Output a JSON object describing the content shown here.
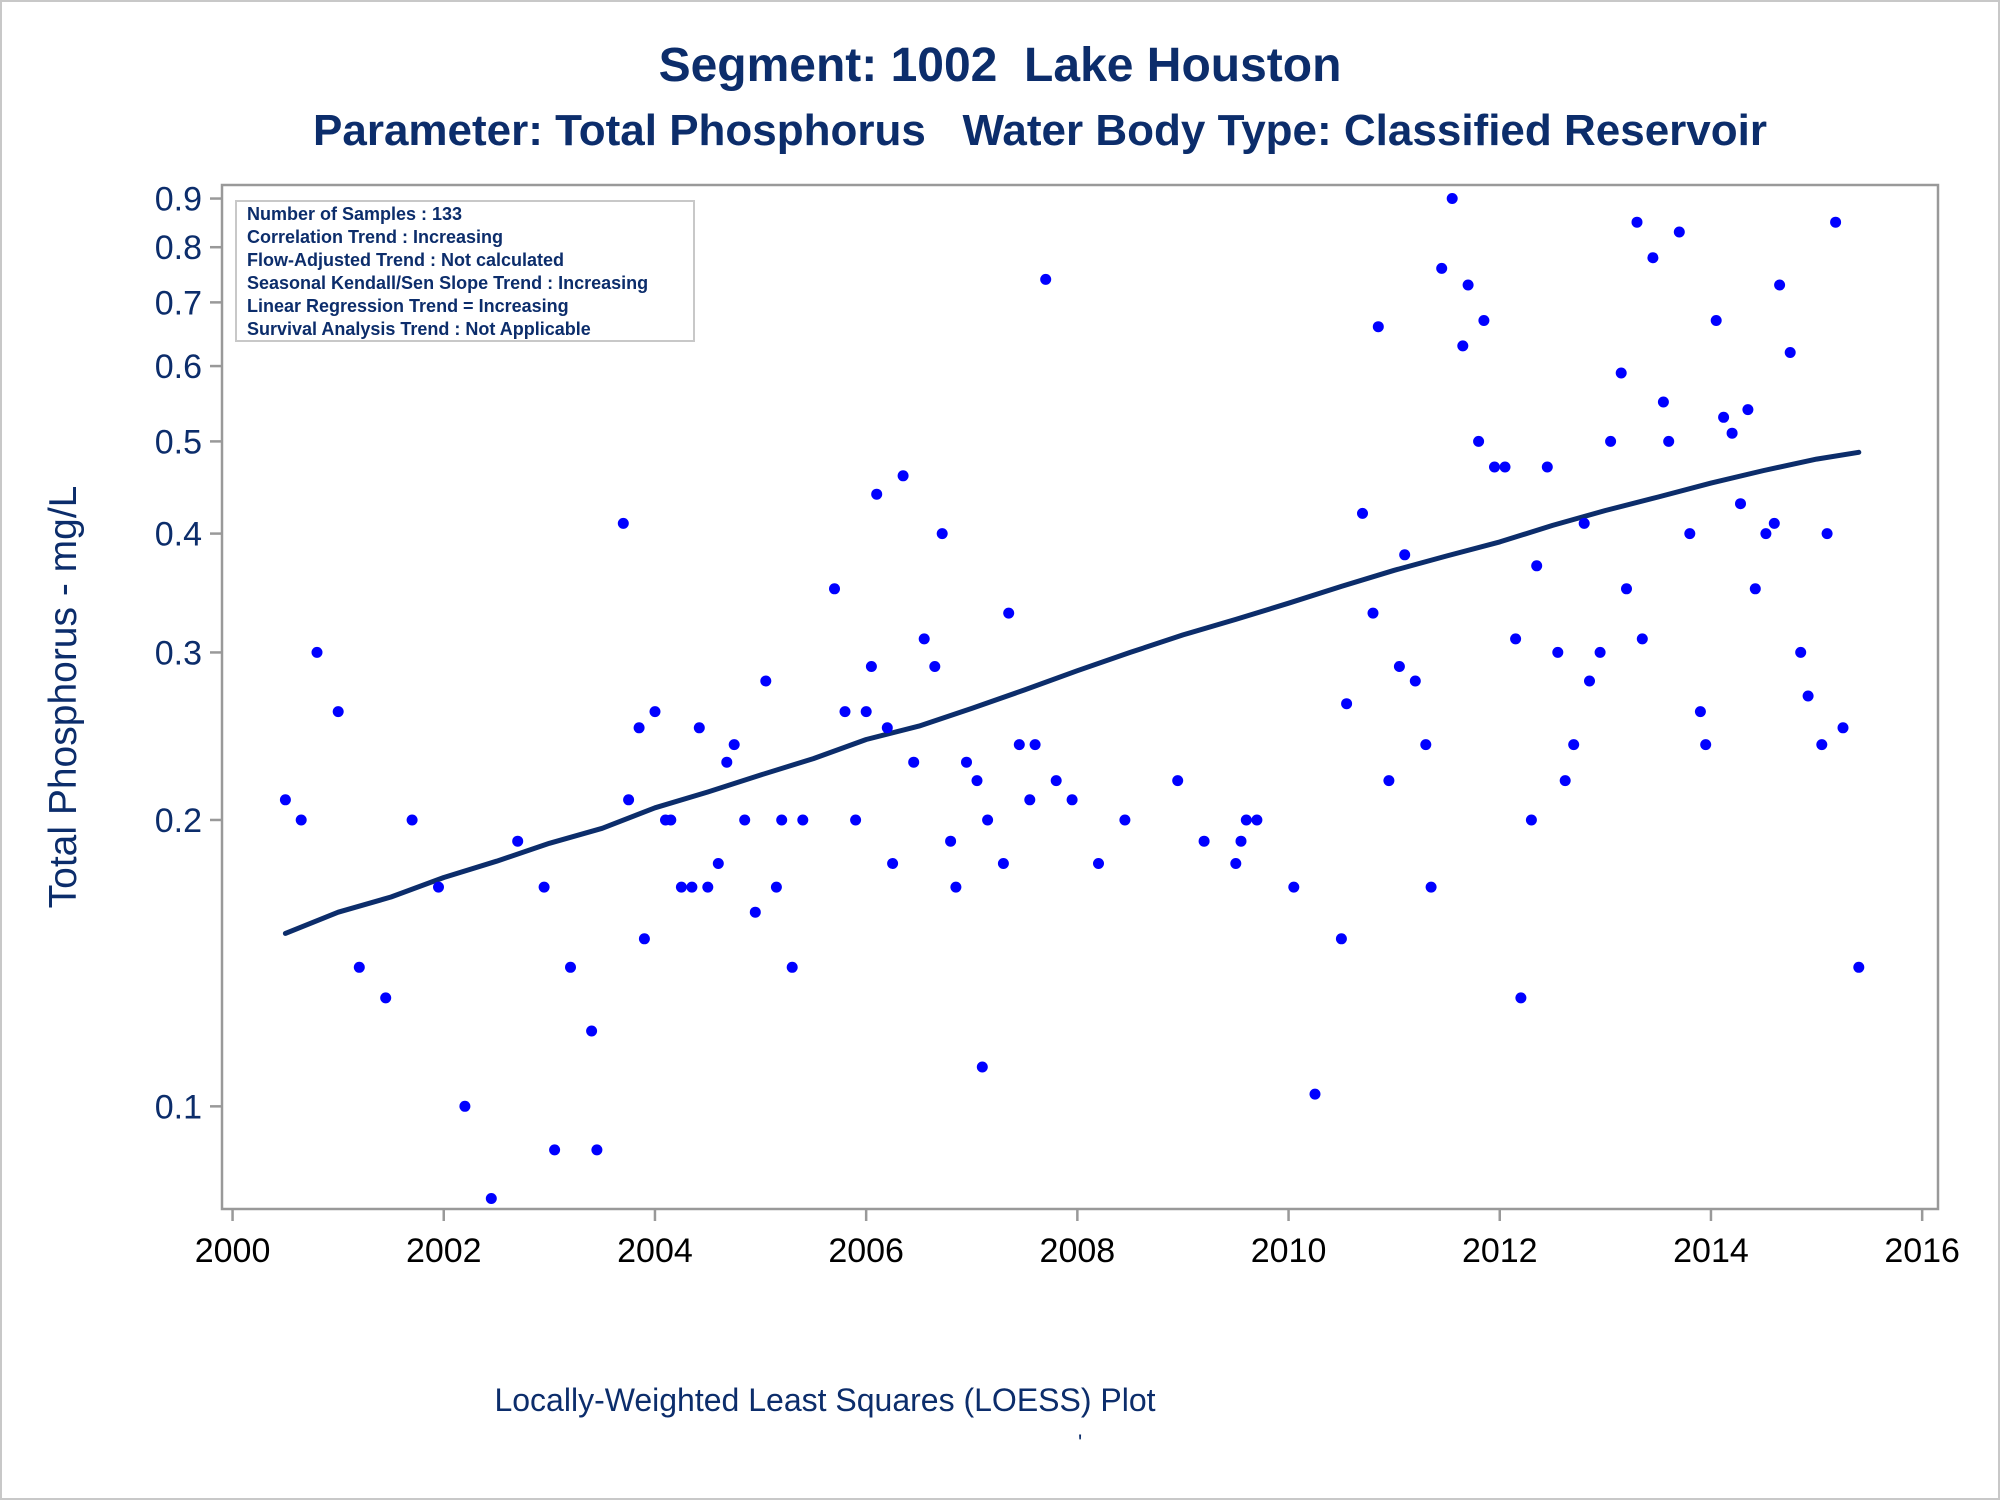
{
  "page": {
    "title_line1": "Segment: 1002  Lake Houston",
    "title_line2": "Parameter: Total Phosphorus   Water Body Type: Classified Reservoir",
    "footer": "Locally-Weighted Least Squares (LOESS) Plot",
    "footer_mark": "'"
  },
  "stats_box": [
    "Number of Samples : 133",
    "Correlation Trend : Increasing",
    "Flow-Adjusted Trend : Not calculated",
    "Seasonal Kendall/Sen Slope Trend : Increasing",
    "Linear Regression Trend = Increasing",
    "Survival Analysis Trend : Not Applicable"
  ],
  "colors": {
    "title": "#0c2d6b",
    "points": "#0000ff",
    "trend_line": "#0c2d6b",
    "axis": "#999999"
  },
  "chart_data": {
    "type": "scatter",
    "title": "Segment: 1002  Lake Houston",
    "subtitle": "Parameter: Total Phosphorus   Water Body Type: Classified Reservoir",
    "xlabel": "",
    "ylabel": "Total Phosphorus - mg/L",
    "y_scale": "log",
    "xlim": [
      1999.9,
      2016.15
    ],
    "ylim": [
      0.078,
      0.93
    ],
    "x_ticks": [
      "2000",
      "2002",
      "2004",
      "2006",
      "2008",
      "2010",
      "2012",
      "2014",
      "2016"
    ],
    "y_ticks": [
      "0.1",
      "0.2",
      "0.3",
      "0.4",
      "0.5",
      "0.6",
      "0.7",
      "0.8",
      "0.9"
    ],
    "x_tick_values": [
      2000,
      2002,
      2004,
      2006,
      2008,
      2010,
      2012,
      2014,
      2016
    ],
    "y_tick_values": [
      0.1,
      0.2,
      0.3,
      0.4,
      0.5,
      0.6,
      0.7,
      0.8,
      0.9
    ],
    "grid": false,
    "points": [
      [
        2000.5,
        0.21
      ],
      [
        2000.65,
        0.2
      ],
      [
        2000.8,
        0.3
      ],
      [
        2001.0,
        0.26
      ],
      [
        2001.2,
        0.14
      ],
      [
        2001.45,
        0.13
      ],
      [
        2001.7,
        0.2
      ],
      [
        2001.95,
        0.17
      ],
      [
        2002.2,
        0.1
      ],
      [
        2002.45,
        0.08
      ],
      [
        2002.7,
        0.19
      ],
      [
        2002.95,
        0.17
      ],
      [
        2003.05,
        0.09
      ],
      [
        2003.2,
        0.14
      ],
      [
        2003.4,
        0.12
      ],
      [
        2003.45,
        0.09
      ],
      [
        2003.7,
        0.41
      ],
      [
        2003.75,
        0.21
      ],
      [
        2003.85,
        0.25
      ],
      [
        2003.9,
        0.15
      ],
      [
        2004.0,
        0.26
      ],
      [
        2004.1,
        0.2
      ],
      [
        2004.15,
        0.2
      ],
      [
        2004.25,
        0.17
      ],
      [
        2004.35,
        0.17
      ],
      [
        2004.42,
        0.25
      ],
      [
        2004.5,
        0.17
      ],
      [
        2004.6,
        0.18
      ],
      [
        2004.68,
        0.23
      ],
      [
        2004.75,
        0.24
      ],
      [
        2004.85,
        0.2
      ],
      [
        2004.95,
        0.16
      ],
      [
        2005.05,
        0.28
      ],
      [
        2005.15,
        0.17
      ],
      [
        2005.2,
        0.2
      ],
      [
        2005.3,
        0.14
      ],
      [
        2005.4,
        0.2
      ],
      [
        2005.7,
        0.35
      ],
      [
        2005.8,
        0.26
      ],
      [
        2005.9,
        0.2
      ],
      [
        2006.0,
        0.26
      ],
      [
        2006.05,
        0.29
      ],
      [
        2006.1,
        0.44
      ],
      [
        2006.2,
        0.25
      ],
      [
        2006.25,
        0.18
      ],
      [
        2006.35,
        0.46
      ],
      [
        2006.45,
        0.23
      ],
      [
        2006.55,
        0.31
      ],
      [
        2006.65,
        0.29
      ],
      [
        2006.72,
        0.4
      ],
      [
        2006.8,
        0.19
      ],
      [
        2006.85,
        0.17
      ],
      [
        2006.95,
        0.23
      ],
      [
        2007.05,
        0.22
      ],
      [
        2007.1,
        0.11
      ],
      [
        2007.15,
        0.2
      ],
      [
        2007.3,
        0.18
      ],
      [
        2007.35,
        0.33
      ],
      [
        2007.45,
        0.24
      ],
      [
        2007.55,
        0.21
      ],
      [
        2007.6,
        0.24
      ],
      [
        2007.7,
        0.74
      ],
      [
        2007.8,
        0.22
      ],
      [
        2007.95,
        0.21
      ],
      [
        2008.2,
        0.18
      ],
      [
        2008.45,
        0.2
      ],
      [
        2008.95,
        0.22
      ],
      [
        2009.2,
        0.19
      ],
      [
        2009.5,
        0.18
      ],
      [
        2009.55,
        0.19
      ],
      [
        2009.6,
        0.2
      ],
      [
        2009.7,
        0.2
      ],
      [
        2010.05,
        0.17
      ],
      [
        2010.25,
        0.103
      ],
      [
        2010.5,
        0.15
      ],
      [
        2010.55,
        0.265
      ],
      [
        2010.7,
        0.42
      ],
      [
        2010.8,
        0.33
      ],
      [
        2010.85,
        0.66
      ],
      [
        2010.95,
        0.22
      ],
      [
        2011.05,
        0.29
      ],
      [
        2011.1,
        0.38
      ],
      [
        2011.2,
        0.28
      ],
      [
        2011.3,
        0.24
      ],
      [
        2011.35,
        0.17
      ],
      [
        2011.45,
        0.76
      ],
      [
        2011.55,
        0.9
      ],
      [
        2011.65,
        0.63
      ],
      [
        2011.7,
        0.73
      ],
      [
        2011.8,
        0.5
      ],
      [
        2011.85,
        0.67
      ],
      [
        2011.95,
        0.47
      ],
      [
        2012.05,
        0.47
      ],
      [
        2012.15,
        0.31
      ],
      [
        2012.2,
        0.13
      ],
      [
        2012.3,
        0.2
      ],
      [
        2012.35,
        0.37
      ],
      [
        2012.45,
        0.47
      ],
      [
        2012.55,
        0.3
      ],
      [
        2012.62,
        0.22
      ],
      [
        2012.7,
        0.24
      ],
      [
        2012.8,
        0.41
      ],
      [
        2012.85,
        0.28
      ],
      [
        2012.95,
        0.3
      ],
      [
        2013.05,
        0.5
      ],
      [
        2013.15,
        0.59
      ],
      [
        2013.2,
        0.35
      ],
      [
        2013.3,
        0.85
      ],
      [
        2013.35,
        0.31
      ],
      [
        2013.45,
        0.78
      ],
      [
        2013.55,
        0.55
      ],
      [
        2013.6,
        0.5
      ],
      [
        2013.7,
        0.83
      ],
      [
        2013.8,
        0.4
      ],
      [
        2013.9,
        0.26
      ],
      [
        2013.95,
        0.24
      ],
      [
        2014.05,
        0.67
      ],
      [
        2014.12,
        0.53
      ],
      [
        2014.2,
        0.51
      ],
      [
        2014.28,
        0.43
      ],
      [
        2014.35,
        0.54
      ],
      [
        2014.42,
        0.35
      ],
      [
        2014.52,
        0.4
      ],
      [
        2014.6,
        0.41
      ],
      [
        2014.65,
        0.73
      ],
      [
        2014.75,
        0.62
      ],
      [
        2014.85,
        0.3
      ],
      [
        2014.92,
        0.27
      ],
      [
        2015.05,
        0.24
      ],
      [
        2015.1,
        0.4
      ],
      [
        2015.18,
        0.85
      ],
      [
        2015.25,
        0.25
      ],
      [
        2015.4,
        0.14
      ]
    ],
    "trend_line": [
      [
        2000.5,
        0.152
      ],
      [
        2001.0,
        0.16
      ],
      [
        2001.5,
        0.166
      ],
      [
        2002.0,
        0.174
      ],
      [
        2002.5,
        0.181
      ],
      [
        2003.0,
        0.189
      ],
      [
        2003.5,
        0.196
      ],
      [
        2004.0,
        0.206
      ],
      [
        2004.5,
        0.214
      ],
      [
        2005.0,
        0.223
      ],
      [
        2005.5,
        0.232
      ],
      [
        2006.0,
        0.243
      ],
      [
        2006.5,
        0.251
      ],
      [
        2007.0,
        0.262
      ],
      [
        2007.5,
        0.274
      ],
      [
        2008.0,
        0.287
      ],
      [
        2008.5,
        0.3
      ],
      [
        2009.0,
        0.313
      ],
      [
        2009.5,
        0.325
      ],
      [
        2010.0,
        0.338
      ],
      [
        2010.5,
        0.352
      ],
      [
        2011.0,
        0.366
      ],
      [
        2011.5,
        0.379
      ],
      [
        2012.0,
        0.392
      ],
      [
        2012.5,
        0.408
      ],
      [
        2013.0,
        0.423
      ],
      [
        2013.5,
        0.437
      ],
      [
        2014.0,
        0.452
      ],
      [
        2014.5,
        0.466
      ],
      [
        2015.0,
        0.479
      ],
      [
        2015.4,
        0.487
      ]
    ]
  }
}
